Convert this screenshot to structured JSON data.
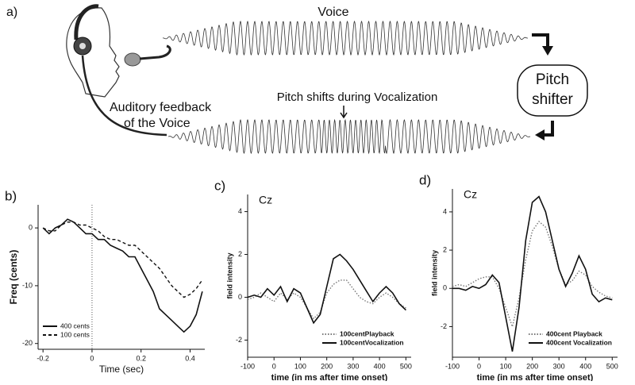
{
  "diagram": {
    "panel_label": "a)",
    "voice": "Voice",
    "pitch_shifts": "Pitch shifts during Vocalization",
    "feedback_line1": "Auditory feedback",
    "feedback_line2": "of the Voice",
    "shifter_line1": "Pitch",
    "shifter_line2": "shifter"
  },
  "chart_data": [
    {
      "type": "line",
      "panel_label": "b)",
      "x_label": "Time (sec)",
      "y_label": "Freq (cents)",
      "x": [
        -0.2,
        -0.175,
        -0.15,
        -0.125,
        -0.1,
        -0.075,
        -0.05,
        -0.025,
        0,
        0.025,
        0.05,
        0.075,
        0.1,
        0.125,
        0.15,
        0.175,
        0.2,
        0.225,
        0.25,
        0.275,
        0.3,
        0.325,
        0.35,
        0.375,
        0.4,
        0.425,
        0.45
      ],
      "series": [
        {
          "name": "400 cents",
          "color": "#111111",
          "dash": "solid",
          "values": [
            0,
            -1,
            0,
            0.5,
            1.5,
            1,
            0,
            -1,
            -1,
            -2,
            -2,
            -3,
            -3.5,
            -4,
            -5,
            -5,
            -7,
            -9,
            -11,
            -14,
            -15,
            -16,
            -17,
            -18,
            -17,
            -15,
            -11
          ]
        },
        {
          "name": "100 cents",
          "color": "#111111",
          "dash": "dashed",
          "values": [
            0,
            -0.5,
            -0.5,
            0.5,
            1,
            1,
            0.5,
            0.5,
            0,
            -0.5,
            -1.5,
            -2,
            -2,
            -2.5,
            -3,
            -3,
            -4,
            -5,
            -6,
            -7,
            -8.5,
            -10,
            -11,
            -12,
            -11.5,
            -10.5,
            -9
          ]
        }
      ],
      "xlim": [
        -0.22,
        0.46
      ],
      "ylim": [
        -21,
        4
      ],
      "xticks": [
        -0.2,
        0,
        0.2,
        0.4
      ],
      "yticks": [
        0,
        -10,
        -20
      ],
      "vline": 0,
      "legend": "lower left"
    },
    {
      "type": "line",
      "panel_label": "c)",
      "annotation": "Cz",
      "x_label": "time (in ms after time onset)",
      "y_label": "field intensity",
      "x": [
        -100,
        -75,
        -50,
        -25,
        0,
        25,
        50,
        75,
        100,
        125,
        150,
        175,
        200,
        225,
        250,
        275,
        300,
        325,
        350,
        375,
        400,
        425,
        450,
        475,
        500
      ],
      "series": [
        {
          "name": "100centPlayback",
          "color": "#777777",
          "dash": "dotted",
          "values": [
            -0.1,
            0,
            0.2,
            0,
            -0.2,
            0.2,
            -0.1,
            0.2,
            0,
            -0.5,
            -1,
            -0.7,
            0.2,
            0.6,
            0.8,
            0.8,
            0.4,
            0,
            -0.2,
            -0.3,
            0,
            0.2,
            0,
            -0.3,
            -0.5
          ]
        },
        {
          "name": "100centVocalization",
          "color": "#111111",
          "dash": "solid",
          "values": [
            0,
            0.1,
            0,
            0.4,
            0.1,
            0.5,
            -0.2,
            0.4,
            0.2,
            -0.5,
            -1.2,
            -0.8,
            0.5,
            1.8,
            2,
            1.7,
            1.3,
            0.8,
            0.3,
            -0.2,
            0.2,
            0.5,
            0.2,
            -0.3,
            -0.6
          ]
        }
      ],
      "xlim": [
        -100,
        520
      ],
      "ylim": [
        -2.8,
        4.8
      ],
      "xticks": [
        -100,
        0,
        100,
        200,
        300,
        400,
        500
      ],
      "yticks": [
        -2,
        0,
        2,
        4
      ],
      "legend": "lower right"
    },
    {
      "type": "line",
      "panel_label": "d)",
      "annotation": "Cz",
      "x_label": "time (in ms after time onset)",
      "y_label": "field intensity",
      "x": [
        -100,
        -75,
        -50,
        -25,
        0,
        25,
        50,
        75,
        100,
        125,
        150,
        175,
        200,
        225,
        250,
        275,
        300,
        325,
        350,
        375,
        400,
        425,
        450,
        475,
        500
      ],
      "series": [
        {
          "name": "400cent Playback",
          "color": "#777777",
          "dash": "dotted",
          "values": [
            0.1,
            0.2,
            0.1,
            0.3,
            0.5,
            0.6,
            0.6,
            0,
            -1,
            -2,
            -0.5,
            1.5,
            3,
            3.5,
            3.2,
            2.2,
            1,
            0.2,
            0.4,
            0.9,
            0.7,
            0.1,
            -0.2,
            -0.4,
            -0.5
          ]
        },
        {
          "name": "400cent Vocalization",
          "color": "#111111",
          "dash": "solid",
          "values": [
            0,
            0,
            -0.1,
            0.1,
            0,
            0.2,
            0.7,
            0.3,
            -1.5,
            -3.3,
            -1,
            2.5,
            4.5,
            4.8,
            4,
            2.5,
            1,
            0.1,
            0.8,
            1.7,
            1,
            -0.3,
            -0.7,
            -0.5,
            -0.6
          ]
        }
      ],
      "xlim": [
        -100,
        520
      ],
      "ylim": [
        -3.6,
        5.2
      ],
      "xticks": [
        -100,
        0,
        100,
        200,
        300,
        400,
        500
      ],
      "yticks": [
        -2,
        0,
        2,
        4
      ],
      "legend": "lower right"
    }
  ]
}
